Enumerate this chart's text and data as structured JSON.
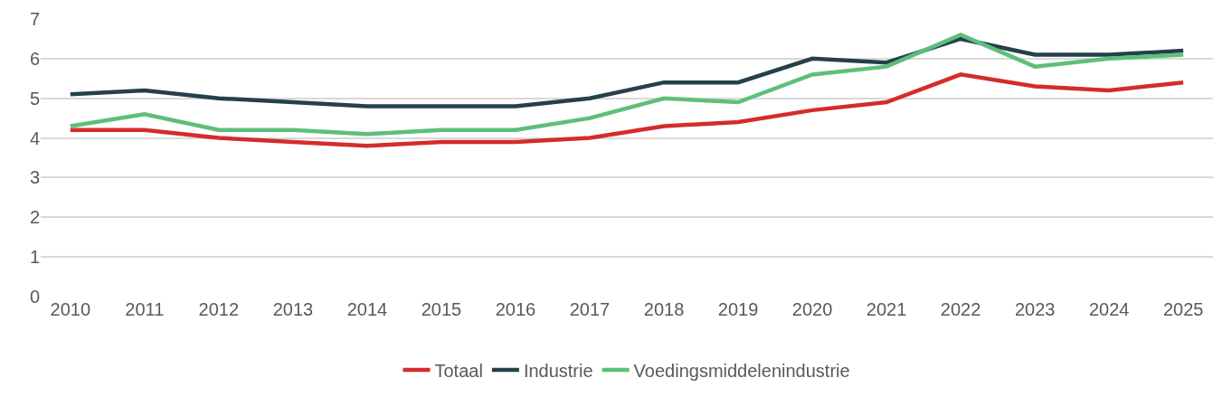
{
  "chart_data": {
    "type": "line",
    "categories": [
      "2010",
      "2011",
      "2012",
      "2013",
      "2014",
      "2015",
      "2016",
      "2017",
      "2018",
      "2019",
      "2020",
      "2021",
      "2022",
      "2023",
      "2024",
      "2025"
    ],
    "series": [
      {
        "name": "Totaal",
        "color": "#d62b2b",
        "values": [
          4.2,
          4.2,
          4.0,
          3.9,
          3.8,
          3.9,
          3.9,
          4.0,
          4.3,
          4.4,
          4.7,
          4.9,
          5.6,
          5.3,
          5.2,
          5.4
        ]
      },
      {
        "name": "Industrie",
        "color": "#25404a",
        "values": [
          5.1,
          5.2,
          5.0,
          4.9,
          4.8,
          4.8,
          4.8,
          5.0,
          5.4,
          5.4,
          6.0,
          5.9,
          6.5,
          6.1,
          6.1,
          6.2
        ]
      },
      {
        "name": "Voedingsmiddelenindustrie",
        "color": "#5dbf7a",
        "values": [
          4.3,
          4.6,
          4.2,
          4.2,
          4.1,
          4.2,
          4.2,
          4.5,
          5.0,
          4.9,
          5.6,
          5.8,
          6.6,
          5.8,
          6.0,
          6.1
        ]
      }
    ],
    "ylim": [
      0,
      7
    ],
    "yticks": [
      0,
      1,
      2,
      3,
      4,
      5,
      6,
      7
    ],
    "grid": "y",
    "legend": "bottom",
    "marker": "none",
    "line_style": "solid"
  }
}
